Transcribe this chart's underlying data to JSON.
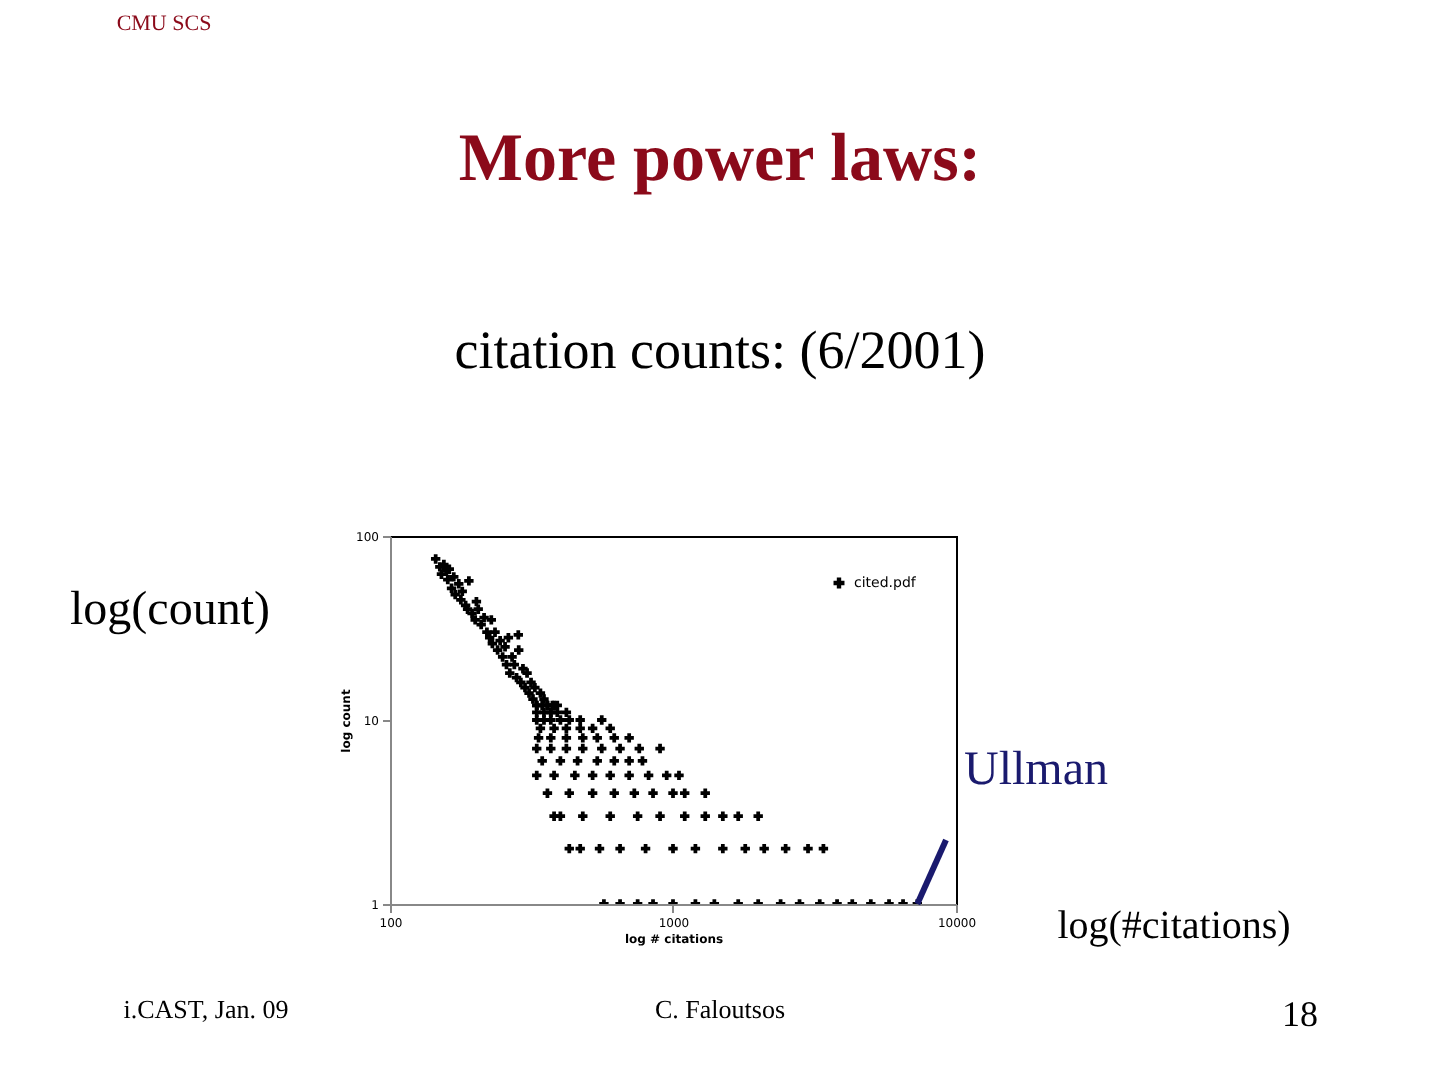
{
  "chart_data": {
    "type": "scatter",
    "title": "More power laws:",
    "subtitle": "citation counts: (6/2001)",
    "xlabel": "log # citations",
    "ylabel": "log count",
    "annotations": [
      "CMU SCS",
      "log(count)",
      {
        "text": "Ullman",
        "x": 7300,
        "y": 1
      },
      "log(#citations)",
      "i.CAST, Jan. 09",
      "C. Faloutsos",
      "18"
    ],
    "x": [
      145,
      150,
      152,
      155,
      158,
      160,
      162,
      165,
      168,
      170,
      175,
      178,
      180,
      185,
      188,
      190,
      195,
      200,
      202,
      205,
      210,
      215,
      220,
      225,
      228,
      230,
      235,
      240,
      245,
      250,
      255,
      258,
      262,
      265,
      270,
      275,
      280,
      284,
      285,
      290,
      295,
      300,
      305,
      310,
      315,
      320,
      325,
      330,
      340,
      350,
      360,
      370,
      380,
      330,
      345,
      360,
      375,
      390,
      330,
      350,
      370,
      390,
      420,
      330,
      350,
      370,
      400,
      430,
      470,
      560,
      340,
      380,
      420,
      470,
      520,
      600,
      335,
      370,
      420,
      480,
      540,
      620,
      700,
      330,
      370,
      420,
      480,
      560,
      650,
      760,
      900,
      345,
      400,
      460,
      540,
      620,
      700,
      780,
      330,
      380,
      450,
      520,
      600,
      700,
      820,
      950,
      1050,
      360,
      430,
      520,
      620,
      730,
      850,
      1000,
      1100,
      1300,
      380,
      400,
      480,
      600,
      750,
      900,
      1100,
      1300,
      1500,
      1700,
      2000,
      430,
      470,
      550,
      650,
      800,
      1000,
      1200,
      1500,
      1800,
      2100,
      2500,
      3000,
      3400,
      570,
      650,
      750,
      850,
      1000,
      1200,
      1400,
      1700,
      2000,
      2400,
      2800,
      3300,
      3800,
      4300,
      5000,
      5800,
      6500,
      7300
    ],
    "series": [
      {
        "name": "cited.pdf",
        "color": "#000000",
        "values": [
          75,
          68,
          62,
          70,
          65,
          58,
          66,
          52,
          60,
          48,
          55,
          45,
          50,
          42,
          40,
          57,
          38,
          35,
          44,
          40,
          33,
          36,
          30,
          28,
          35,
          26,
          30,
          24,
          27,
          22,
          25,
          20,
          28,
          18,
          22,
          20,
          17,
          29,
          24,
          16,
          19,
          15,
          18,
          14,
          16,
          13,
          15,
          12,
          14,
          13,
          12,
          11,
          12,
          12,
          12,
          12,
          12,
          12,
          11,
          11,
          11,
          11,
          11,
          10,
          10,
          10,
          10,
          10,
          10,
          10,
          9,
          9,
          9,
          9,
          9,
          9,
          8,
          8,
          8,
          8,
          8,
          8,
          8,
          7,
          7,
          7,
          7,
          7,
          7,
          7,
          7,
          6,
          6,
          6,
          6,
          6,
          6,
          6,
          5,
          5,
          5,
          5,
          5,
          5,
          5,
          5,
          5,
          4,
          4,
          4,
          4,
          4,
          4,
          4,
          4,
          4,
          3,
          3,
          3,
          3,
          3,
          3,
          3,
          3,
          3,
          3,
          3,
          2,
          2,
          2,
          2,
          2,
          2,
          2,
          2,
          2,
          2,
          2,
          2,
          2,
          1,
          1,
          1,
          1,
          1,
          1,
          1,
          1,
          1,
          1,
          1,
          1,
          1,
          1,
          1,
          1,
          1,
          1
        ]
      }
    ],
    "xlim": [
      100,
      10000
    ],
    "ylim": [
      1,
      100
    ],
    "xticks": [
      100,
      1000,
      10000
    ],
    "yticks": [
      1,
      10,
      100
    ],
    "log": "xy",
    "marker": "cross",
    "legend": "top right",
    "grid": false
  }
}
